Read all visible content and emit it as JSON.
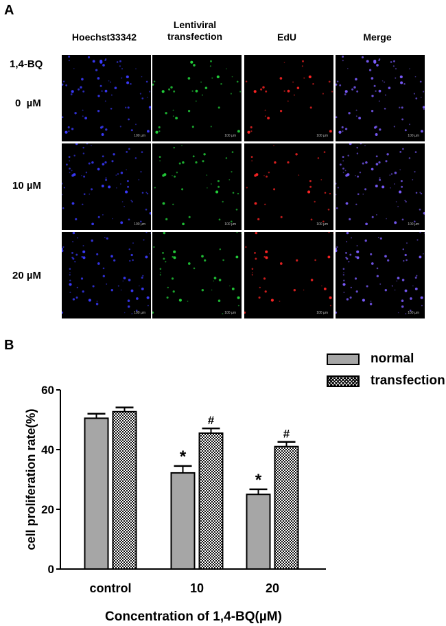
{
  "panel_a": {
    "letter": "A",
    "columns": [
      "Hoechst33342",
      "Lentiviral transfection",
      "EdU",
      "Merge"
    ],
    "column_colors": [
      "#3a3aff",
      "#22d13a",
      "#ff2424",
      "#7b5cff"
    ],
    "row_header": "1,4-BQ",
    "rows": [
      "0  µM",
      "10 µM",
      "20 µM"
    ],
    "scalebar_text": "100 µm"
  },
  "panel_b": {
    "letter": "B"
  },
  "chart_data": {
    "type": "bar",
    "title": "",
    "xlabel": "Concentration of 1,4-BQ(µM)",
    "ylabel": "cell proliferation rate(%)",
    "categories": [
      "control",
      "10",
      "20"
    ],
    "ylim": [
      0,
      60
    ],
    "yticks": [
      0,
      20,
      40,
      60
    ],
    "legend_position": "top-right",
    "series": [
      {
        "name": "normal",
        "values": [
          50.5,
          32.2,
          25.0
        ],
        "errors": [
          1.5,
          2.3,
          1.7
        ],
        "annotations": [
          "",
          "*",
          "*"
        ],
        "color": "#a6a6a6"
      },
      {
        "name": "transfection",
        "values": [
          52.7,
          45.5,
          41.0
        ],
        "errors": [
          1.4,
          1.6,
          1.6
        ],
        "annotations": [
          "",
          "#",
          "#"
        ],
        "color": "#eeeeee"
      }
    ]
  }
}
